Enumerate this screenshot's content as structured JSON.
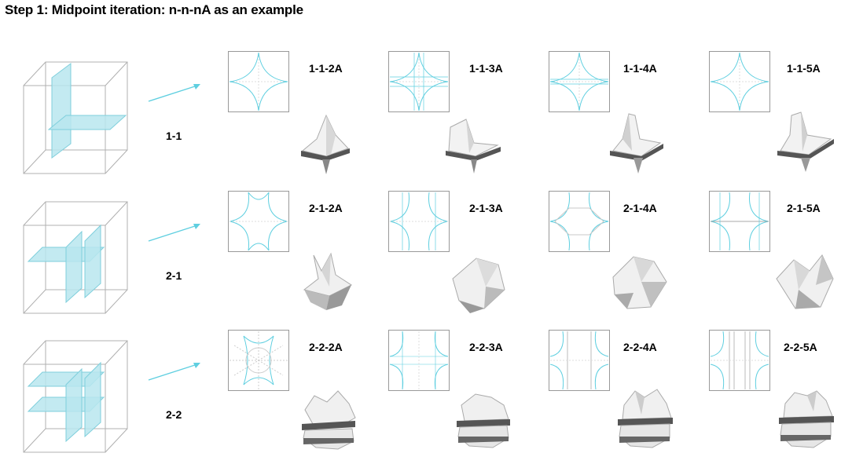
{
  "title": "Step 1: Midpoint iteration: n-n-nA as an example",
  "colors": {
    "accent": "#5fcfe0",
    "plane_fill": "#b8e6ee",
    "line": "#9a9a9a"
  },
  "rows": [
    {
      "label": "1-1",
      "variants": [
        "1-1-2A",
        "1-1-3A",
        "1-1-4A",
        "1-1-5A"
      ]
    },
    {
      "label": "2-1",
      "variants": [
        "2-1-2A",
        "2-1-3A",
        "2-1-4A",
        "2-1-5A"
      ]
    },
    {
      "label": "2-2",
      "variants": [
        "2-2-2A",
        "2-2-3A",
        "2-2-4A",
        "2-2-5A"
      ]
    }
  ]
}
